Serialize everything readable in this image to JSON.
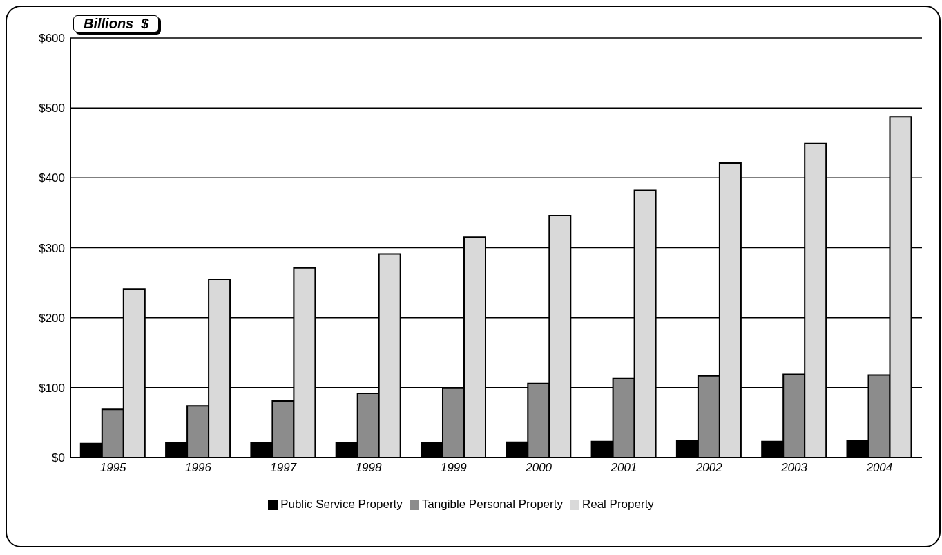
{
  "chart_data": {
    "type": "bar",
    "ylabel": "Billions  $",
    "categories": [
      "1995",
      "1996",
      "1997",
      "1998",
      "1999",
      "2000",
      "2001",
      "2002",
      "2003",
      "2004"
    ],
    "series": [
      {
        "name": "Public Service Property",
        "color": "#000000",
        "values": [
          20,
          21,
          21,
          21,
          21,
          22,
          23,
          24,
          23,
          24
        ]
      },
      {
        "name": "Tangible Personal Property",
        "color": "#8c8c8c",
        "values": [
          69,
          74,
          81,
          92,
          99,
          106,
          113,
          117,
          119,
          118
        ]
      },
      {
        "name": "Real Property",
        "color": "#d9d9d9",
        "values": [
          241,
          255,
          271,
          291,
          315,
          346,
          382,
          421,
          449,
          487
        ]
      }
    ],
    "ylim": [
      0,
      600
    ],
    "yticks": [
      {
        "value": 0,
        "label": "$0"
      },
      {
        "value": 100,
        "label": "$100"
      },
      {
        "value": 200,
        "label": "$200"
      },
      {
        "value": 300,
        "label": "$300"
      },
      {
        "value": 400,
        "label": "$400"
      },
      {
        "value": 500,
        "label": "$500"
      },
      {
        "value": 600,
        "label": "$600"
      }
    ],
    "grid": "y",
    "legend": "bottom"
  }
}
